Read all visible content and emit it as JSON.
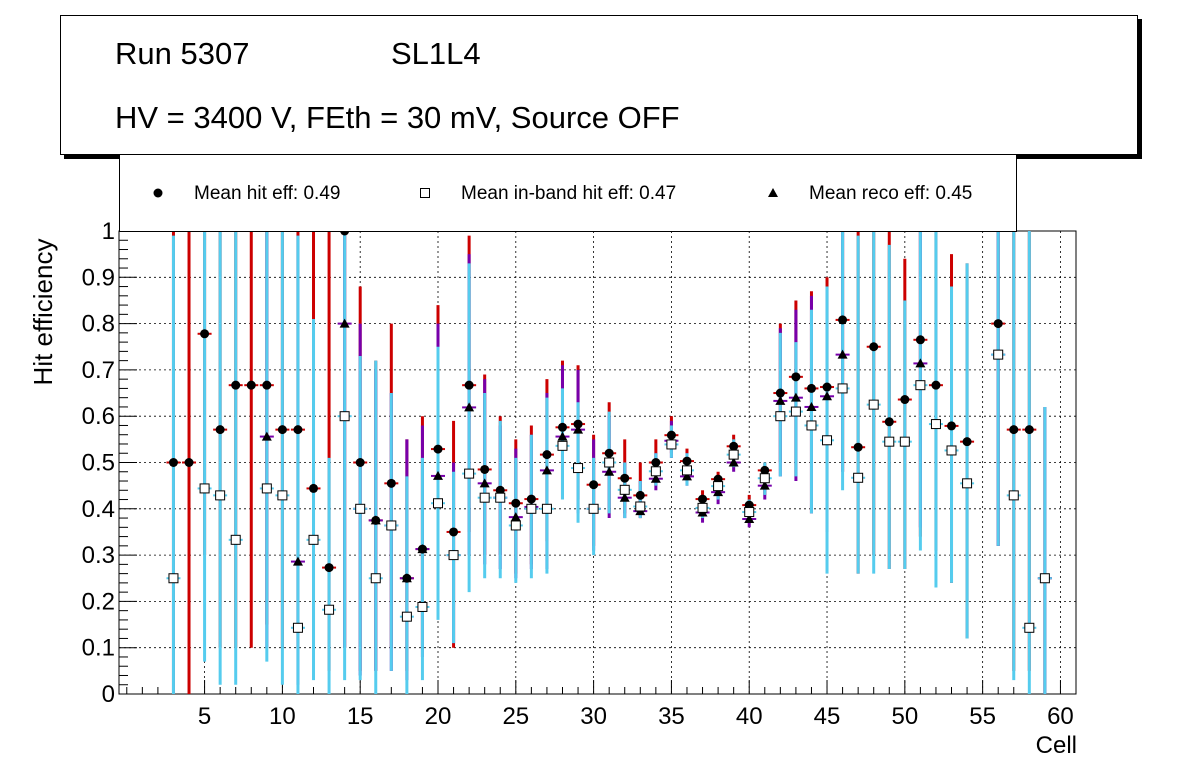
{
  "header": {
    "run_label": "Run 5307",
    "layer_label": "SL1L4",
    "conditions_label": "HV = 3400 V, FEth = 30 mV, Source OFF"
  },
  "legend": {
    "hit_label": "Mean hit  eff: 0.49",
    "inband_label": "Mean in-band hit eff: 0.47",
    "reco_label": "Mean reco eff: 0.45"
  },
  "chart_data": {
    "type": "scatter",
    "title": "",
    "xlabel": "Cell",
    "ylabel": "Hit efficiency",
    "xlim": [
      -0.5,
      61
    ],
    "ylim": [
      0,
      1
    ],
    "xticks": [
      5,
      10,
      15,
      20,
      25,
      30,
      35,
      40,
      45,
      50,
      55,
      60
    ],
    "yticks": [
      0,
      0.1,
      0.2,
      0.3,
      0.4,
      0.5,
      0.6,
      0.7,
      0.8,
      0.9,
      1
    ],
    "xtick_labels": [
      "5",
      "10",
      "15",
      "20",
      "25",
      "30",
      "35",
      "40",
      "45",
      "50",
      "55",
      "60"
    ],
    "ytick_labels": [
      "0",
      "0.1",
      "0.2",
      "0.3",
      "0.4",
      "0.5",
      "0.6",
      "0.7",
      "0.8",
      "0.9",
      "1"
    ],
    "grid": true,
    "colors": {
      "hit_err": "#cc0000",
      "inband_err": "#55ccee",
      "reco_err": "#7700aa"
    },
    "series": [
      {
        "name": "Mean hit eff",
        "marker": "circle",
        "points": [
          {
            "x": 3,
            "y": 0.5,
            "lo": 0,
            "hi": 1
          },
          {
            "x": 4,
            "y": 0.5,
            "lo": 0,
            "hi": 1
          },
          {
            "x": 5,
            "y": 0.778,
            "lo": 0.3,
            "hi": 1
          },
          {
            "x": 6,
            "y": 0.571,
            "lo": 0.1,
            "hi": 1
          },
          {
            "x": 7,
            "y": 0.667,
            "lo": 0.1,
            "hi": 1
          },
          {
            "x": 8,
            "y": 0.667,
            "lo": 0.1,
            "hi": 1
          },
          {
            "x": 9,
            "y": 0.667,
            "lo": 0.15,
            "hi": 1
          },
          {
            "x": 10,
            "y": 0.571,
            "lo": 0.1,
            "hi": 1
          },
          {
            "x": 11,
            "y": 0.571,
            "lo": 0.1,
            "hi": 1
          },
          {
            "x": 12,
            "y": 0.444,
            "lo": 0.1,
            "hi": 1
          },
          {
            "x": 13,
            "y": 0.273,
            "lo": 0.05,
            "hi": 1
          },
          {
            "x": 14,
            "y": 1.0,
            "lo": 0.1,
            "hi": 1
          },
          {
            "x": 15,
            "y": 0.5,
            "lo": 0.05,
            "hi": 0.88
          },
          {
            "x": 16,
            "y": 0.375,
            "lo": 0.05,
            "hi": 0.72
          },
          {
            "x": 17,
            "y": 0.455,
            "lo": 0.1,
            "hi": 0.8
          },
          {
            "x": 18,
            "y": 0.25,
            "lo": 0.05,
            "hi": 0.55
          },
          {
            "x": 19,
            "y": 0.313,
            "lo": 0.1,
            "hi": 0.6
          },
          {
            "x": 20,
            "y": 0.529,
            "lo": 0.25,
            "hi": 0.84
          },
          {
            "x": 21,
            "y": 0.35,
            "lo": 0.1,
            "hi": 0.59
          },
          {
            "x": 22,
            "y": 0.667,
            "lo": 0.35,
            "hi": 0.99
          },
          {
            "x": 23,
            "y": 0.485,
            "lo": 0.3,
            "hi": 0.69
          },
          {
            "x": 24,
            "y": 0.44,
            "lo": 0.3,
            "hi": 0.6
          },
          {
            "x": 25,
            "y": 0.412,
            "lo": 0.26,
            "hi": 0.55
          },
          {
            "x": 26,
            "y": 0.421,
            "lo": 0.28,
            "hi": 0.58
          },
          {
            "x": 27,
            "y": 0.517,
            "lo": 0.33,
            "hi": 0.68
          },
          {
            "x": 28,
            "y": 0.576,
            "lo": 0.42,
            "hi": 0.72
          },
          {
            "x": 29,
            "y": 0.583,
            "lo": 0.42,
            "hi": 0.71
          },
          {
            "x": 30,
            "y": 0.452,
            "lo": 0.32,
            "hi": 0.56
          },
          {
            "x": 31,
            "y": 0.52,
            "lo": 0.39,
            "hi": 0.63
          },
          {
            "x": 32,
            "y": 0.466,
            "lo": 0.39,
            "hi": 0.55
          },
          {
            "x": 33,
            "y": 0.429,
            "lo": 0.38,
            "hi": 0.5
          },
          {
            "x": 34,
            "y": 0.5,
            "lo": 0.45,
            "hi": 0.55
          },
          {
            "x": 35,
            "y": 0.559,
            "lo": 0.52,
            "hi": 0.6
          },
          {
            "x": 36,
            "y": 0.503,
            "lo": 0.46,
            "hi": 0.53
          },
          {
            "x": 37,
            "y": 0.421,
            "lo": 0.38,
            "hi": 0.44
          },
          {
            "x": 38,
            "y": 0.464,
            "lo": 0.42,
            "hi": 0.48
          },
          {
            "x": 39,
            "y": 0.535,
            "lo": 0.5,
            "hi": 0.56
          },
          {
            "x": 40,
            "y": 0.408,
            "lo": 0.37,
            "hi": 0.43
          },
          {
            "x": 41,
            "y": 0.483,
            "lo": 0.43,
            "hi": 0.5
          },
          {
            "x": 42,
            "y": 0.65,
            "lo": 0.5,
            "hi": 0.8
          },
          {
            "x": 43,
            "y": 0.685,
            "lo": 0.47,
            "hi": 0.85
          },
          {
            "x": 44,
            "y": 0.66,
            "lo": 0.39,
            "hi": 0.87
          },
          {
            "x": 45,
            "y": 0.663,
            "lo": 0.4,
            "hi": 0.9
          },
          {
            "x": 46,
            "y": 0.808,
            "lo": 0.48,
            "hi": 1
          },
          {
            "x": 47,
            "y": 0.533,
            "lo": 0.26,
            "hi": 1
          },
          {
            "x": 48,
            "y": 0.75,
            "lo": 0.3,
            "hi": 1
          },
          {
            "x": 49,
            "y": 0.588,
            "lo": 0.27,
            "hi": 1
          },
          {
            "x": 50,
            "y": 0.636,
            "lo": 0.27,
            "hi": 0.94
          },
          {
            "x": 51,
            "y": 0.765,
            "lo": 0.34,
            "hi": 1
          },
          {
            "x": 52,
            "y": 0.667,
            "lo": 0.31,
            "hi": 1
          },
          {
            "x": 53,
            "y": 0.579,
            "lo": 0.24,
            "hi": 0.95
          },
          {
            "x": 54,
            "y": 0.545,
            "lo": 0.12,
            "hi": 0.93
          },
          {
            "x": 56,
            "y": 0.8,
            "lo": 0.32,
            "hi": 1
          },
          {
            "x": 57,
            "y": 0.571,
            "lo": 0.05,
            "hi": 1
          },
          {
            "x": 58,
            "y": 0.571,
            "lo": 0.05,
            "hi": 1
          },
          {
            "x": 59,
            "y": 0.25,
            "lo": 0,
            "hi": 0.62
          }
        ]
      },
      {
        "name": "Mean in-band hit eff",
        "marker": "open-square",
        "points": [
          {
            "x": 3,
            "y": 0.25,
            "lo": 0,
            "hi": 0.99
          },
          {
            "x": 5,
            "y": 0.444,
            "lo": 0.07,
            "hi": 1
          },
          {
            "x": 6,
            "y": 0.429,
            "lo": 0.02,
            "hi": 1
          },
          {
            "x": 7,
            "y": 0.333,
            "lo": 0.02,
            "hi": 1
          },
          {
            "x": 9,
            "y": 0.444,
            "lo": 0.07,
            "hi": 1
          },
          {
            "x": 10,
            "y": 0.429,
            "lo": 0.02,
            "hi": 1
          },
          {
            "x": 11,
            "y": 0.143,
            "lo": 0,
            "hi": 0.99
          },
          {
            "x": 12,
            "y": 0.333,
            "lo": 0.03,
            "hi": 0.81
          },
          {
            "x": 13,
            "y": 0.182,
            "lo": 0,
            "hi": 0.51
          },
          {
            "x": 14,
            "y": 0.6,
            "lo": 0.03,
            "hi": 1
          },
          {
            "x": 15,
            "y": 0.4,
            "lo": 0.03,
            "hi": 0.73
          },
          {
            "x": 16,
            "y": 0.25,
            "lo": 0,
            "hi": 0.72
          },
          {
            "x": 17,
            "y": 0.364,
            "lo": 0.05,
            "hi": 0.65
          },
          {
            "x": 18,
            "y": 0.167,
            "lo": 0,
            "hi": 0.47
          },
          {
            "x": 19,
            "y": 0.188,
            "lo": 0.03,
            "hi": 0.51
          },
          {
            "x": 20,
            "y": 0.412,
            "lo": 0.16,
            "hi": 0.75
          },
          {
            "x": 21,
            "y": 0.3,
            "lo": 0.11,
            "hi": 0.48
          },
          {
            "x": 22,
            "y": 0.476,
            "lo": 0.22,
            "hi": 0.93
          },
          {
            "x": 23,
            "y": 0.424,
            "lo": 0.25,
            "hi": 0.65
          },
          {
            "x": 24,
            "y": 0.424,
            "lo": 0.25,
            "hi": 0.59
          },
          {
            "x": 25,
            "y": 0.364,
            "lo": 0.24,
            "hi": 0.51
          },
          {
            "x": 26,
            "y": 0.4,
            "lo": 0.25,
            "hi": 0.56
          },
          {
            "x": 27,
            "y": 0.4,
            "lo": 0.26,
            "hi": 0.64
          },
          {
            "x": 28,
            "y": 0.536,
            "lo": 0.42,
            "hi": 0.66
          },
          {
            "x": 29,
            "y": 0.488,
            "lo": 0.37,
            "hi": 0.63
          },
          {
            "x": 30,
            "y": 0.4,
            "lo": 0.3,
            "hi": 0.51
          },
          {
            "x": 31,
            "y": 0.5,
            "lo": 0.39,
            "hi": 0.61
          },
          {
            "x": 32,
            "y": 0.441,
            "lo": 0.38,
            "hi": 0.5
          },
          {
            "x": 33,
            "y": 0.405,
            "lo": 0.38,
            "hi": 0.46
          },
          {
            "x": 34,
            "y": 0.481,
            "lo": 0.45,
            "hi": 0.52
          },
          {
            "x": 35,
            "y": 0.539,
            "lo": 0.51,
            "hi": 0.58
          },
          {
            "x": 36,
            "y": 0.483,
            "lo": 0.45,
            "hi": 0.52
          },
          {
            "x": 37,
            "y": 0.402,
            "lo": 0.38,
            "hi": 0.43
          },
          {
            "x": 38,
            "y": 0.449,
            "lo": 0.42,
            "hi": 0.47
          },
          {
            "x": 39,
            "y": 0.517,
            "lo": 0.49,
            "hi": 0.55
          },
          {
            "x": 40,
            "y": 0.393,
            "lo": 0.37,
            "hi": 0.42
          },
          {
            "x": 41,
            "y": 0.466,
            "lo": 0.43,
            "hi": 0.5
          },
          {
            "x": 42,
            "y": 0.6,
            "lo": 0.47,
            "hi": 0.78
          },
          {
            "x": 43,
            "y": 0.61,
            "lo": 0.47,
            "hi": 0.76
          },
          {
            "x": 44,
            "y": 0.58,
            "lo": 0.39,
            "hi": 0.83
          },
          {
            "x": 45,
            "y": 0.548,
            "lo": 0.26,
            "hi": 0.88
          },
          {
            "x": 46,
            "y": 0.66,
            "lo": 0.44,
            "hi": 1
          },
          {
            "x": 47,
            "y": 0.467,
            "lo": 0.26,
            "hi": 0.99
          },
          {
            "x": 48,
            "y": 0.625,
            "lo": 0.26,
            "hi": 1
          },
          {
            "x": 49,
            "y": 0.545,
            "lo": 0.27,
            "hi": 0.97
          },
          {
            "x": 50,
            "y": 0.545,
            "lo": 0.27,
            "hi": 0.85
          },
          {
            "x": 51,
            "y": 0.667,
            "lo": 0.31,
            "hi": 1
          },
          {
            "x": 52,
            "y": 0.583,
            "lo": 0.23,
            "hi": 1
          },
          {
            "x": 53,
            "y": 0.526,
            "lo": 0.24,
            "hi": 0.88
          },
          {
            "x": 54,
            "y": 0.455,
            "lo": 0.12,
            "hi": 0.93
          },
          {
            "x": 56,
            "y": 0.733,
            "lo": 0.32,
            "hi": 1
          },
          {
            "x": 57,
            "y": 0.429,
            "lo": 0.03,
            "hi": 1
          },
          {
            "x": 58,
            "y": 0.143,
            "lo": 0,
            "hi": 1
          },
          {
            "x": 59,
            "y": 0.25,
            "lo": 0,
            "hi": 0.62
          }
        ]
      },
      {
        "name": "Mean reco eff",
        "marker": "triangle",
        "points": [
          {
            "x": 9,
            "y": 0.556,
            "lo": 0.1,
            "hi": 1
          },
          {
            "x": 11,
            "y": 0.286,
            "lo": 0.02,
            "hi": 0.99
          },
          {
            "x": 14,
            "y": 0.8,
            "lo": 0.1,
            "hi": 1
          },
          {
            "x": 15,
            "y": 0.4,
            "lo": 0.04,
            "hi": 0.8
          },
          {
            "x": 16,
            "y": 0.375,
            "lo": 0.05,
            "hi": 0.7
          },
          {
            "x": 17,
            "y": 0.364,
            "lo": 0.05,
            "hi": 0.65
          },
          {
            "x": 18,
            "y": 0.25,
            "lo": 0.03,
            "hi": 0.55
          },
          {
            "x": 19,
            "y": 0.313,
            "lo": 0.08,
            "hi": 0.58
          },
          {
            "x": 20,
            "y": 0.471,
            "lo": 0.2,
            "hi": 0.8
          },
          {
            "x": 21,
            "y": 0.3,
            "lo": 0.11,
            "hi": 0.5
          },
          {
            "x": 22,
            "y": 0.619,
            "lo": 0.3,
            "hi": 0.95
          },
          {
            "x": 23,
            "y": 0.455,
            "lo": 0.28,
            "hi": 0.68
          },
          {
            "x": 24,
            "y": 0.424,
            "lo": 0.27,
            "hi": 0.58
          },
          {
            "x": 25,
            "y": 0.382,
            "lo": 0.25,
            "hi": 0.53
          },
          {
            "x": 26,
            "y": 0.404,
            "lo": 0.27,
            "hi": 0.56
          },
          {
            "x": 27,
            "y": 0.483,
            "lo": 0.27,
            "hi": 0.65
          },
          {
            "x": 28,
            "y": 0.556,
            "lo": 0.42,
            "hi": 0.71
          },
          {
            "x": 29,
            "y": 0.571,
            "lo": 0.39,
            "hi": 0.7
          },
          {
            "x": 30,
            "y": 0.4,
            "lo": 0.31,
            "hi": 0.55
          },
          {
            "x": 31,
            "y": 0.48,
            "lo": 0.38,
            "hi": 0.6
          },
          {
            "x": 32,
            "y": 0.424,
            "lo": 0.38,
            "hi": 0.5
          },
          {
            "x": 33,
            "y": 0.395,
            "lo": 0.38,
            "hi": 0.46
          },
          {
            "x": 34,
            "y": 0.465,
            "lo": 0.44,
            "hi": 0.52
          },
          {
            "x": 35,
            "y": 0.547,
            "lo": 0.51,
            "hi": 0.59
          },
          {
            "x": 36,
            "y": 0.47,
            "lo": 0.45,
            "hi": 0.52
          },
          {
            "x": 37,
            "y": 0.392,
            "lo": 0.37,
            "hi": 0.43
          },
          {
            "x": 38,
            "y": 0.436,
            "lo": 0.41,
            "hi": 0.47
          },
          {
            "x": 39,
            "y": 0.5,
            "lo": 0.48,
            "hi": 0.54
          },
          {
            "x": 40,
            "y": 0.378,
            "lo": 0.36,
            "hi": 0.41
          },
          {
            "x": 41,
            "y": 0.45,
            "lo": 0.42,
            "hi": 0.49
          },
          {
            "x": 42,
            "y": 0.633,
            "lo": 0.47,
            "hi": 0.79
          },
          {
            "x": 43,
            "y": 0.64,
            "lo": 0.46,
            "hi": 0.83
          },
          {
            "x": 44,
            "y": 0.62,
            "lo": 0.39,
            "hi": 0.86
          },
          {
            "x": 45,
            "y": 0.643,
            "lo": 0.35,
            "hi": 0.88
          },
          {
            "x": 46,
            "y": 0.733,
            "lo": 0.48,
            "hi": 1
          },
          {
            "x": 51,
            "y": 0.714,
            "lo": 0.36,
            "hi": 1
          },
          {
            "x": 56,
            "y": 0.733,
            "lo": 0.32,
            "hi": 1
          },
          {
            "x": 59,
            "y": 0.25,
            "lo": 0,
            "hi": 0.62
          }
        ]
      }
    ]
  }
}
